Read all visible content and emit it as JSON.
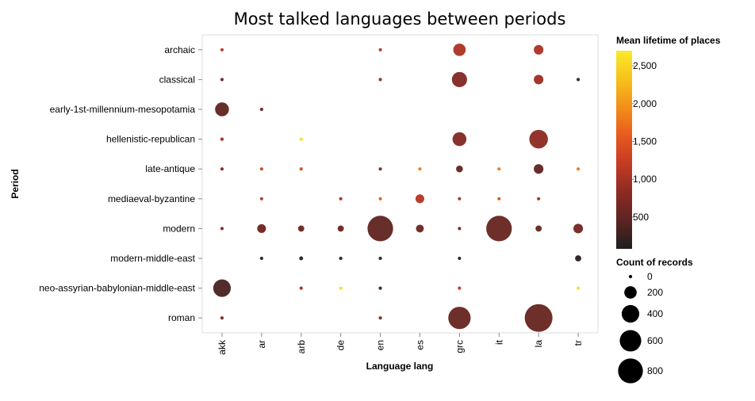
{
  "chart_data": {
    "type": "scatter",
    "title": "Most talked languages between periods",
    "xlabel": "Language lang",
    "ylabel": "Period",
    "x_categories": [
      "akk",
      "ar",
      "arb",
      "de",
      "en",
      "es",
      "grc",
      "it",
      "la",
      "tr"
    ],
    "y_categories": [
      "archaic",
      "classical",
      "early-1st-millennium-mesopotamia",
      "hellenistic-republican",
      "late-antique",
      "mediaeval-byzantine",
      "modern",
      "modern-middle-east",
      "neo-assyrian-babylonian-middle-east",
      "roman"
    ],
    "size_field": "Count of records",
    "color_field": "Mean lifetime of places",
    "grid": false,
    "points": [
      {
        "x": "akk",
        "y": "archaic",
        "count": 5,
        "lifetime": 1100
      },
      {
        "x": "en",
        "y": "archaic",
        "count": 5,
        "lifetime": 1100
      },
      {
        "x": "grc",
        "y": "archaic",
        "count": 200,
        "lifetime": 1050
      },
      {
        "x": "la",
        "y": "archaic",
        "count": 120,
        "lifetime": 1050
      },
      {
        "x": "akk",
        "y": "classical",
        "count": 3,
        "lifetime": 600
      },
      {
        "x": "en",
        "y": "classical",
        "count": 3,
        "lifetime": 900
      },
      {
        "x": "grc",
        "y": "classical",
        "count": 300,
        "lifetime": 750
      },
      {
        "x": "la",
        "y": "classical",
        "count": 120,
        "lifetime": 950
      },
      {
        "x": "tr",
        "y": "classical",
        "count": 3,
        "lifetime": 250
      },
      {
        "x": "akk",
        "y": "early-1st-millennium-mesopotamia",
        "count": 250,
        "lifetime": 500
      },
      {
        "x": "ar",
        "y": "early-1st-millennium-mesopotamia",
        "count": 3,
        "lifetime": 550
      },
      {
        "x": "akk",
        "y": "hellenistic-republican",
        "count": 5,
        "lifetime": 900
      },
      {
        "x": "arb",
        "y": "hellenistic-republican",
        "count": 3,
        "lifetime": 2600
      },
      {
        "x": "grc",
        "y": "hellenistic-republican",
        "count": 250,
        "lifetime": 750
      },
      {
        "x": "la",
        "y": "hellenistic-republican",
        "count": 450,
        "lifetime": 850
      },
      {
        "x": "akk",
        "y": "late-antique",
        "count": 3,
        "lifetime": 700
      },
      {
        "x": "ar",
        "y": "late-antique",
        "count": 5,
        "lifetime": 1300
      },
      {
        "x": "arb",
        "y": "late-antique",
        "count": 5,
        "lifetime": 1400
      },
      {
        "x": "en",
        "y": "late-antique",
        "count": 3,
        "lifetime": 700
      },
      {
        "x": "es",
        "y": "late-antique",
        "count": 3,
        "lifetime": 1800
      },
      {
        "x": "grc",
        "y": "late-antique",
        "count": 60,
        "lifetime": 550
      },
      {
        "x": "it",
        "y": "late-antique",
        "count": 3,
        "lifetime": 1800
      },
      {
        "x": "la",
        "y": "late-antique",
        "count": 120,
        "lifetime": 500
      },
      {
        "x": "tr",
        "y": "late-antique",
        "count": 3,
        "lifetime": 1800
      },
      {
        "x": "ar",
        "y": "mediaeval-byzantine",
        "count": 3,
        "lifetime": 1100
      },
      {
        "x": "de",
        "y": "mediaeval-byzantine",
        "count": 3,
        "lifetime": 1000
      },
      {
        "x": "en",
        "y": "mediaeval-byzantine",
        "count": 5,
        "lifetime": 1600
      },
      {
        "x": "es",
        "y": "mediaeval-byzantine",
        "count": 100,
        "lifetime": 1100
      },
      {
        "x": "grc",
        "y": "mediaeval-byzantine",
        "count": 5,
        "lifetime": 1000
      },
      {
        "x": "it",
        "y": "mediaeval-byzantine",
        "count": 5,
        "lifetime": 1500
      },
      {
        "x": "la",
        "y": "mediaeval-byzantine",
        "count": 5,
        "lifetime": 950
      },
      {
        "x": "akk",
        "y": "modern",
        "count": 3,
        "lifetime": 750
      },
      {
        "x": "ar",
        "y": "modern",
        "count": 100,
        "lifetime": 600
      },
      {
        "x": "arb",
        "y": "modern",
        "count": 50,
        "lifetime": 600
      },
      {
        "x": "de",
        "y": "modern",
        "count": 50,
        "lifetime": 600
      },
      {
        "x": "en",
        "y": "modern",
        "count": 850,
        "lifetime": 500
      },
      {
        "x": "es",
        "y": "modern",
        "count": 80,
        "lifetime": 600
      },
      {
        "x": "grc",
        "y": "modern",
        "count": 3,
        "lifetime": 650
      },
      {
        "x": "it",
        "y": "modern",
        "count": 850,
        "lifetime": 550
      },
      {
        "x": "la",
        "y": "modern",
        "count": 50,
        "lifetime": 550
      },
      {
        "x": "tr",
        "y": "modern",
        "count": 120,
        "lifetime": 650
      },
      {
        "x": "ar",
        "y": "modern-middle-east",
        "count": 10,
        "lifetime": 150
      },
      {
        "x": "arb",
        "y": "modern-middle-east",
        "count": 20,
        "lifetime": 150
      },
      {
        "x": "de",
        "y": "modern-middle-east",
        "count": 15,
        "lifetime": 150
      },
      {
        "x": "en",
        "y": "modern-middle-east",
        "count": 10,
        "lifetime": 150
      },
      {
        "x": "grc",
        "y": "modern-middle-east",
        "count": 5,
        "lifetime": 150
      },
      {
        "x": "tr",
        "y": "modern-middle-east",
        "count": 50,
        "lifetime": 150
      },
      {
        "x": "akk",
        "y": "neo-assyrian-babylonian-middle-east",
        "count": 400,
        "lifetime": 350
      },
      {
        "x": "arb",
        "y": "neo-assyrian-babylonian-middle-east",
        "count": 5,
        "lifetime": 1000
      },
      {
        "x": "de",
        "y": "neo-assyrian-babylonian-middle-east",
        "count": 3,
        "lifetime": 2600
      },
      {
        "x": "en",
        "y": "neo-assyrian-babylonian-middle-east",
        "count": 3,
        "lifetime": 300
      },
      {
        "x": "grc",
        "y": "neo-assyrian-babylonian-middle-east",
        "count": 5,
        "lifetime": 1200
      },
      {
        "x": "tr",
        "y": "neo-assyrian-babylonian-middle-east",
        "count": 3,
        "lifetime": 2600
      },
      {
        "x": "akk",
        "y": "roman",
        "count": 5,
        "lifetime": 650
      },
      {
        "x": "en",
        "y": "roman",
        "count": 3,
        "lifetime": 650
      },
      {
        "x": "grc",
        "y": "roman",
        "count": 650,
        "lifetime": 550
      },
      {
        "x": "la",
        "y": "roman",
        "count": 1000,
        "lifetime": 550
      }
    ],
    "color_legend": {
      "title": "Mean lifetime of places",
      "domain": [
        80,
        2700
      ],
      "ticks": [
        500,
        1000,
        1500,
        2000,
        2500
      ],
      "tick_labels": [
        "500",
        "1,000",
        "1,500",
        "2,000",
        "2,500"
      ]
    },
    "size_legend": {
      "title": "Count of records",
      "values": [
        0,
        200,
        400,
        600,
        800
      ],
      "labels": [
        "0",
        "200",
        "400",
        "600",
        "800"
      ]
    },
    "colors": {
      "scale": [
        "#1f1f1f",
        "#5c2422",
        "#8c2b23",
        "#c43b25",
        "#e8591e",
        "#f38f19",
        "#f6c21a",
        "#f9ea2b"
      ],
      "axis": "#888888"
    }
  }
}
